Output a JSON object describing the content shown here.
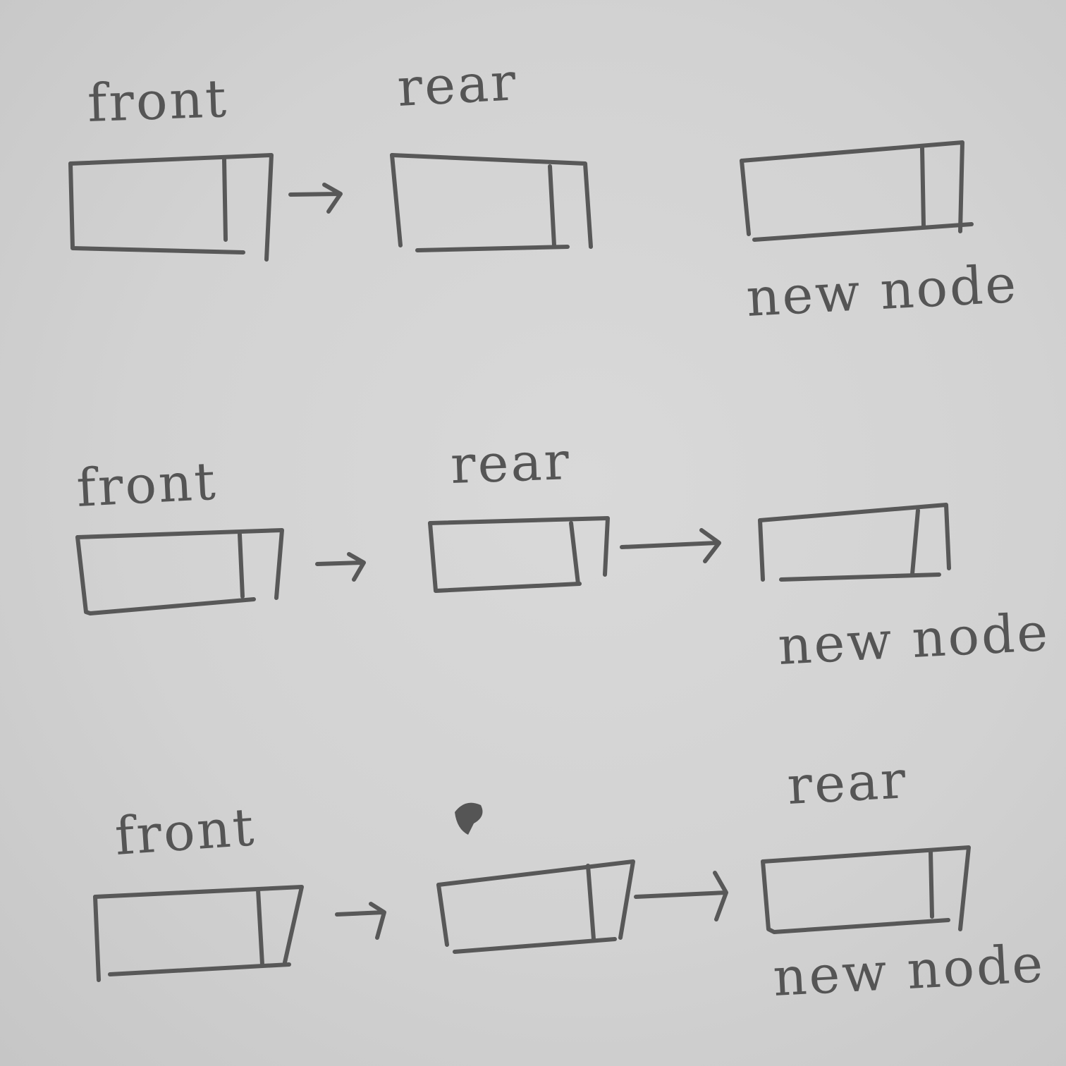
{
  "diagram": {
    "rows": [
      {
        "front_label": "front",
        "rear_label": "rear",
        "new_node_label": "new node"
      },
      {
        "front_label": "front",
        "rear_label": "rear",
        "new_node_label": "new node"
      },
      {
        "front_label": "front",
        "rear_label": "rear",
        "new_node_label": "new node"
      }
    ]
  },
  "colors": {
    "paper": "#d4d4d4",
    "ink": "#585858"
  }
}
